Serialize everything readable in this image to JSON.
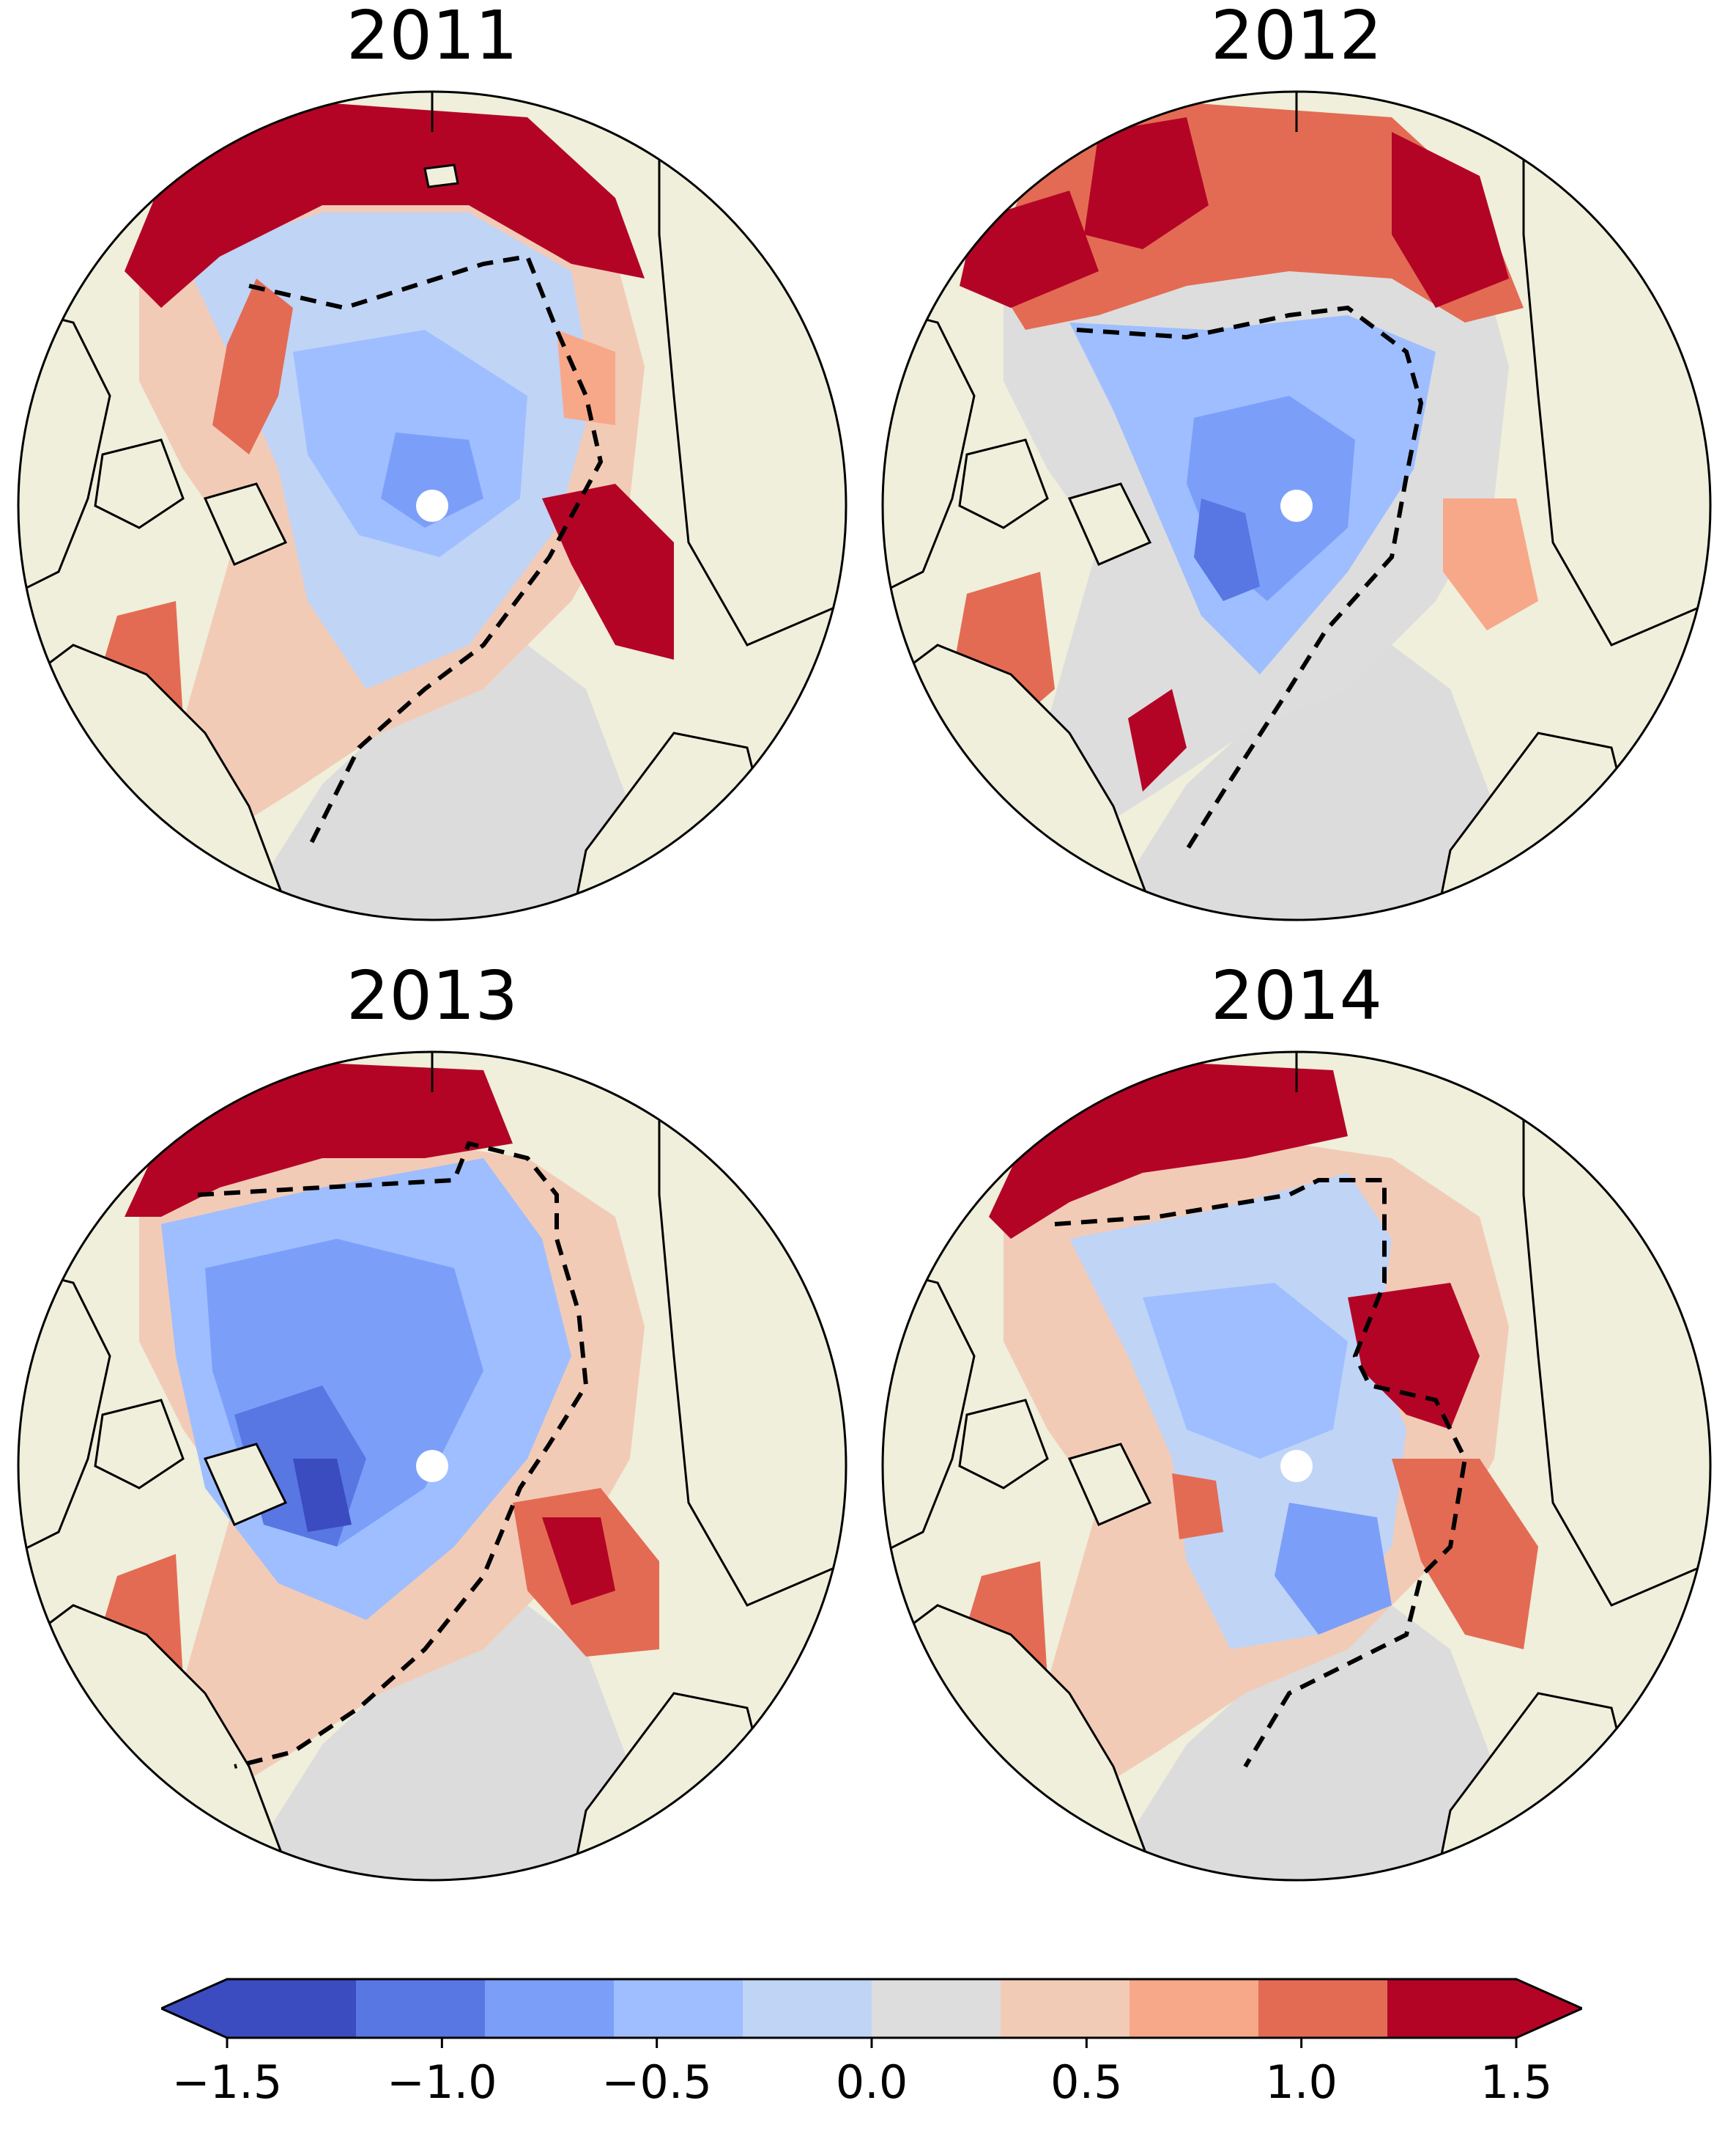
{
  "figure": {
    "panels": [
      {
        "title": "2011"
      },
      {
        "title": "2012"
      },
      {
        "title": "2013"
      },
      {
        "title": "2014"
      }
    ],
    "colorbar": {
      "ticks": [
        "−1.5",
        "−1.0",
        "−0.5",
        "0.0",
        "0.5",
        "1.0",
        "1.5"
      ],
      "levels": [
        -1.5,
        -1.2,
        -0.9,
        -0.6,
        -0.3,
        0.3,
        0.6,
        0.9,
        1.2,
        1.5
      ],
      "colors": [
        "#3b4cc0",
        "#5977e3",
        "#7b9ff9",
        "#9ebeff",
        "#c0d4f5",
        "#dddddd",
        "#f2cbb7",
        "#f7a889",
        "#e36b54",
        "#b40426"
      ],
      "extend": "both"
    },
    "map_colors": {
      "land": "#efefdb",
      "ocean_mask": "#dcdcdc",
      "pole_hole": "#ffffff",
      "contour": "#000000"
    }
  }
}
